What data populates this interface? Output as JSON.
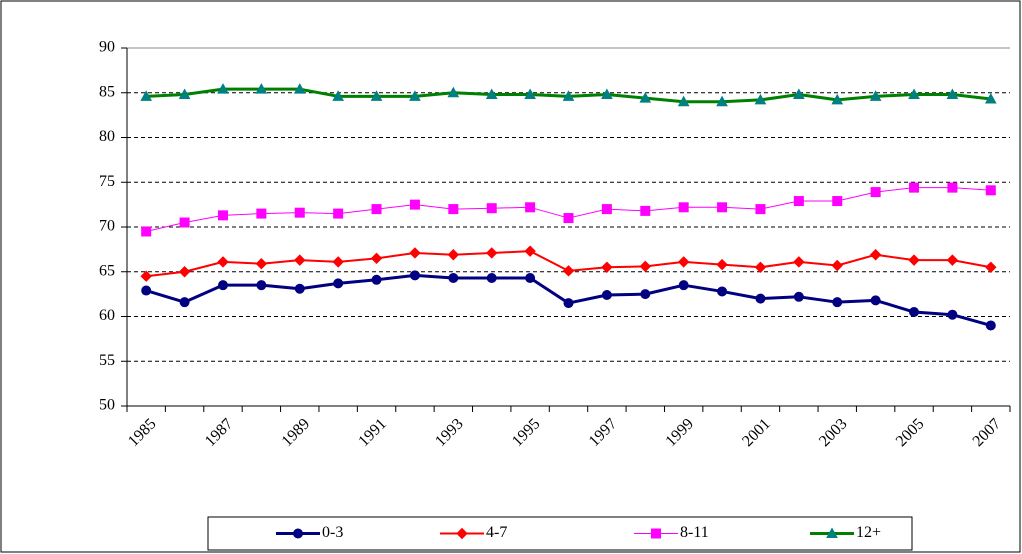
{
  "chart_data": {
    "type": "line",
    "categories": [
      "1985",
      null,
      "1987",
      null,
      "1989",
      null,
      "1991",
      null,
      "1993",
      null,
      "1995",
      null,
      "1997",
      null,
      "1999",
      null,
      "2001",
      null,
      "2003",
      null,
      "2005",
      null,
      "2007"
    ],
    "series": [
      {
        "name": "0-3",
        "color": "#000080",
        "marker": "circle",
        "marker_color": "#000080",
        "line_width": 3,
        "values": [
          62.9,
          61.6,
          63.5,
          63.5,
          63.1,
          63.7,
          64.1,
          64.6,
          64.3,
          64.3,
          64.3,
          61.5,
          62.4,
          62.5,
          63.5,
          62.8,
          62.0,
          62.2,
          61.6,
          61.8,
          60.5,
          60.2,
          59.0
        ]
      },
      {
        "name": "4-7",
        "color": "#ff0000",
        "marker": "diamond",
        "marker_color": "#ff0000",
        "line_width": 2,
        "values": [
          64.5,
          65.0,
          66.1,
          65.9,
          66.3,
          66.1,
          66.5,
          67.1,
          66.9,
          67.1,
          67.3,
          65.1,
          65.5,
          65.6,
          66.1,
          65.8,
          65.5,
          66.1,
          65.7,
          66.9,
          66.3,
          66.3,
          65.5
        ]
      },
      {
        "name": "8-11",
        "color": "#ff00ff",
        "marker": "square",
        "marker_color": "#ff00ff",
        "line_width": 1,
        "values": [
          69.5,
          70.5,
          71.3,
          71.5,
          71.6,
          71.5,
          72.0,
          72.5,
          72.0,
          72.1,
          72.2,
          71.0,
          72.0,
          71.8,
          72.2,
          72.2,
          72.0,
          72.9,
          72.9,
          73.9,
          74.4,
          74.4,
          74.1
        ]
      },
      {
        "name": "12+",
        "color": "#008000",
        "marker": "triangle",
        "marker_color": "#008080",
        "line_width": 3,
        "values": [
          84.6,
          84.8,
          85.4,
          85.4,
          85.4,
          84.6,
          84.6,
          84.6,
          85.0,
          84.8,
          84.8,
          84.6,
          84.8,
          84.4,
          84.0,
          84.0,
          84.2,
          84.8,
          84.2,
          84.6,
          84.8,
          84.8,
          84.3
        ]
      }
    ],
    "ylim": [
      50,
      90
    ],
    "yticks": [
      50,
      55,
      60,
      65,
      70,
      75,
      80,
      85,
      90
    ],
    "grid": true,
    "legend": "bottom"
  }
}
